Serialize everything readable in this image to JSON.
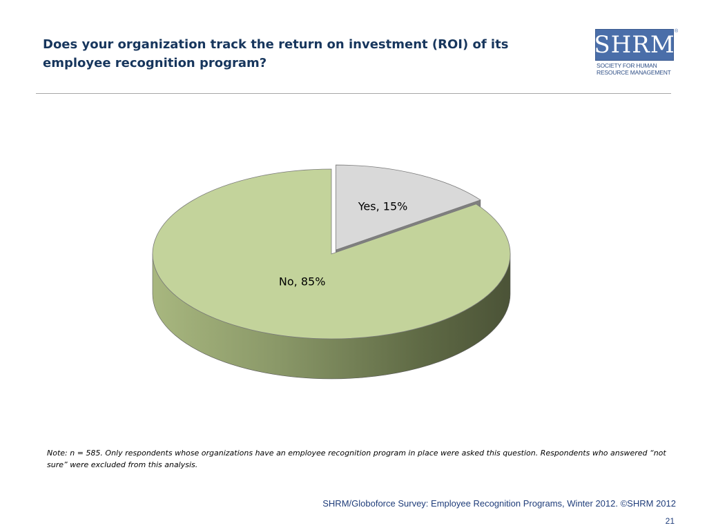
{
  "slide": {
    "title": "Does your organization track the return on investment (ROI) of its employee recognition program?",
    "note": "Note: n = 585. Only respondents whose organizations have an employee recognition program in place were asked this question. Respondents who answered “not sure” were excluded from this analysis.",
    "source": "SHRM/Globoforce Survey: Employee Recognition Programs, Winter 2012. ©SHRM 2012",
    "page_number": "21"
  },
  "logo": {
    "wordmark": "SHRM",
    "registered": "®",
    "subtitle_line1": "SOCIETY FOR HUMAN",
    "subtitle_line2": "RESOURCE MANAGEMENT",
    "color": "#4a6ea9"
  },
  "chart_data": {
    "type": "pie",
    "style": "3d-exploded",
    "title": "",
    "slices": [
      {
        "label": "Yes",
        "value": 15,
        "display": "Yes, 15%",
        "color": "#d9d9d9",
        "exploded": true
      },
      {
        "label": "No",
        "value": 85,
        "display": "No, 85%",
        "color": "#c3d39b",
        "exploded": false
      }
    ],
    "start_angle": "12 o'clock",
    "direction": "clockwise",
    "legend": "none"
  }
}
